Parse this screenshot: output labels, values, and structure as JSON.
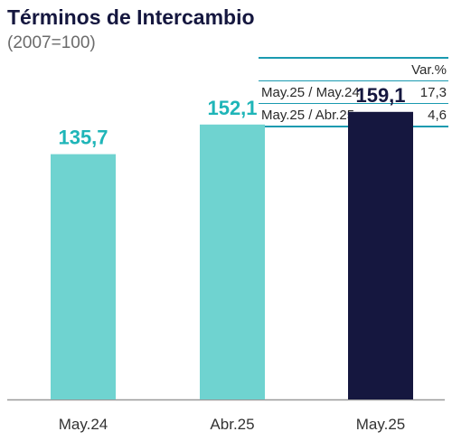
{
  "title": "Términos de Intercambio",
  "subtitle": "(2007=100)",
  "variation_table": {
    "header": "Var.%",
    "rows": [
      {
        "label": "May.25 / May.24",
        "value": "17,3"
      },
      {
        "label": "May.25 / Abr.25",
        "value": "4,6"
      }
    ]
  },
  "chart_data": {
    "type": "bar",
    "categories": [
      "May.24",
      "Abr.25",
      "May.25"
    ],
    "values": [
      135.7,
      152.1,
      159.1
    ],
    "value_labels": [
      "135,7",
      "152,1",
      "159,1"
    ],
    "bar_colors": [
      "#6fd3d0",
      "#6fd3d0",
      "#15173f"
    ],
    "label_colors": [
      "#1fb5b8",
      "#1fb5b8",
      "#15173f"
    ],
    "ylim": [
      0,
      200
    ],
    "grid": false
  }
}
